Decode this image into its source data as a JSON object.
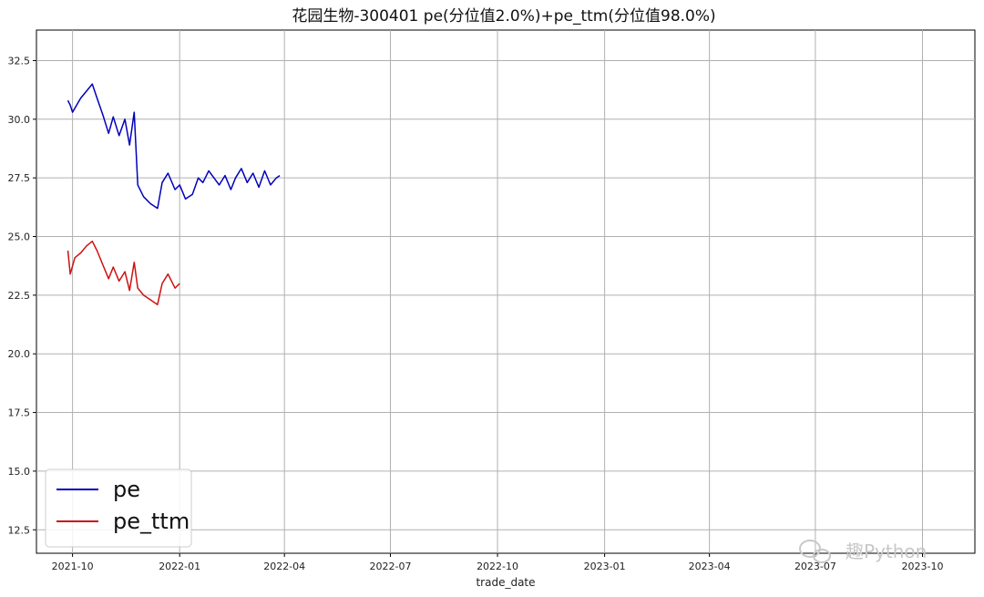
{
  "chart_data": {
    "type": "line",
    "title": "花园生物-300401 pe(分位值2.0%)+pe_ttm(分位值98.0%)",
    "xlabel": "trade_date",
    "ylabel": "",
    "x_ticks": [
      "2021-10",
      "2022-01",
      "2022-04",
      "2022-07",
      "2022-10",
      "2023-01",
      "2023-04",
      "2023-07",
      "2023-10"
    ],
    "y_ticks": [
      "12.5",
      "15.0",
      "17.5",
      "20.0",
      "22.5",
      "25.0",
      "27.5",
      "30.0",
      "32.5"
    ],
    "xlim": [
      "2021-08-31",
      "2023-11-15"
    ],
    "ylim": [
      11.5,
      33.8
    ],
    "grid": true,
    "legend_position": "lower-left",
    "series": [
      {
        "name": "pe",
        "color": "#0000bb",
        "points": [
          [
            "2021-09-27",
            30.8
          ],
          [
            "2021-09-29",
            30.6
          ],
          [
            "2021-10-01",
            30.3
          ],
          [
            "2021-10-08",
            30.9
          ],
          [
            "2021-10-13",
            31.2
          ],
          [
            "2021-10-18",
            31.5
          ],
          [
            "2021-10-22",
            30.9
          ],
          [
            "2021-10-27",
            30.2
          ],
          [
            "2021-11-01",
            29.4
          ],
          [
            "2021-11-05",
            30.1
          ],
          [
            "2021-11-10",
            29.3
          ],
          [
            "2021-11-15",
            30.0
          ],
          [
            "2021-11-19",
            28.9
          ],
          [
            "2021-11-23",
            30.3
          ],
          [
            "2021-11-26",
            27.2
          ],
          [
            "2021-12-01",
            26.7
          ],
          [
            "2021-12-07",
            26.4
          ],
          [
            "2021-12-13",
            26.2
          ],
          [
            "2021-12-17",
            27.3
          ],
          [
            "2021-12-22",
            27.7
          ],
          [
            "2021-12-28",
            27.0
          ],
          [
            "2022-01-01",
            27.2
          ],
          [
            "2022-01-06",
            26.6
          ],
          [
            "2022-01-12",
            26.8
          ],
          [
            "2022-01-17",
            27.5
          ],
          [
            "2022-01-21",
            27.3
          ],
          [
            "2022-01-26",
            27.8
          ],
          [
            "2022-02-04",
            27.2
          ],
          [
            "2022-02-09",
            27.6
          ],
          [
            "2022-02-14",
            27.0
          ],
          [
            "2022-02-18",
            27.5
          ],
          [
            "2022-02-23",
            27.9
          ],
          [
            "2022-02-28",
            27.3
          ],
          [
            "2022-03-05",
            27.7
          ],
          [
            "2022-03-10",
            27.1
          ],
          [
            "2022-03-15",
            27.8
          ],
          [
            "2022-03-20",
            27.2
          ],
          [
            "2022-03-25",
            27.5
          ],
          [
            "2022-03-28",
            27.6
          ]
        ]
      },
      {
        "name": "pe_ttm",
        "color": "#cc1111",
        "points": [
          [
            "2021-09-27",
            24.4
          ],
          [
            "2021-09-29",
            23.4
          ],
          [
            "2021-10-03",
            24.1
          ],
          [
            "2021-10-08",
            24.3
          ],
          [
            "2021-10-13",
            24.6
          ],
          [
            "2021-10-18",
            24.8
          ],
          [
            "2021-10-22",
            24.4
          ],
          [
            "2021-10-27",
            23.8
          ],
          [
            "2021-11-01",
            23.2
          ],
          [
            "2021-11-05",
            23.7
          ],
          [
            "2021-11-10",
            23.1
          ],
          [
            "2021-11-15",
            23.5
          ],
          [
            "2021-11-19",
            22.7
          ],
          [
            "2021-11-23",
            23.9
          ],
          [
            "2021-11-26",
            22.8
          ],
          [
            "2021-12-01",
            22.5
          ],
          [
            "2021-12-07",
            22.3
          ],
          [
            "2021-12-13",
            22.1
          ],
          [
            "2021-12-17",
            23.0
          ],
          [
            "2021-12-22",
            23.4
          ],
          [
            "2021-12-28",
            22.8
          ],
          [
            "2022-01-01",
            23.0
          ]
        ]
      }
    ]
  },
  "watermark": {
    "text": "趣Python",
    "icon": "wechat-icon"
  }
}
